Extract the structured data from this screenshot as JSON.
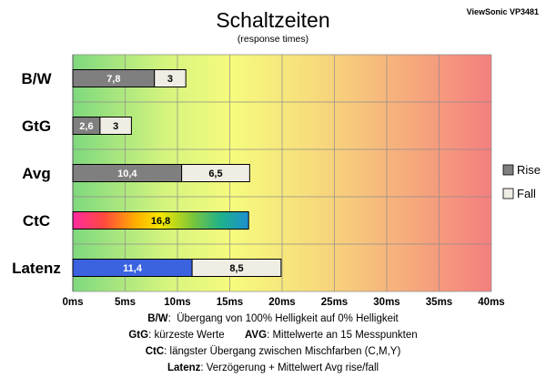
{
  "chart_data": {
    "type": "bar",
    "orientation": "horizontal",
    "stacked": true,
    "title": "Schaltzeiten",
    "subtitle": "(response times)",
    "monitor": "ViewSonic VP3481",
    "categories": [
      "B/W",
      "GtG",
      "Avg",
      "CtC",
      "Latenz"
    ],
    "series": [
      {
        "name": "Rise",
        "values": [
          7.8,
          2.6,
          10.4,
          16.8,
          11.4
        ]
      },
      {
        "name": "Fall",
        "values": [
          3,
          3,
          6.5,
          null,
          8.5
        ]
      }
    ],
    "value_labels": {
      "rise": [
        "7,8",
        "2,6",
        "10,4",
        "16,8",
        "11,4"
      ],
      "fall": [
        "3",
        "3",
        "6,5",
        "",
        "8,5"
      ]
    },
    "special_bars": {
      "CtC": "rainbow",
      "Latenz": "blue"
    },
    "xlim": [
      0,
      40
    ],
    "xticks": [
      "0ms",
      "5ms",
      "10ms",
      "15ms",
      "20ms",
      "25ms",
      "30ms",
      "35ms",
      "40ms"
    ],
    "grid": true,
    "legend_position": "right",
    "colors": {
      "rise": "#7f7f7f",
      "fall": "#f0ede4",
      "latenz": "#3b63e0",
      "background_gradient": [
        "#7ed87e",
        "#f4f87a",
        "#f6d27a",
        "#f58080"
      ]
    }
  },
  "notes": [
    {
      "key": "B/W",
      "text": "Übergang von 100% Helligkeit auf 0% Helligkeit"
    },
    {
      "key": "GtG",
      "text": "kürzeste Werte",
      "key2": "AVG",
      "text2": "Mittelwerte an 15 Messpunkten"
    },
    {
      "key": "CtC",
      "text": "längster Übergang zwischen Mischfarben (C,M,Y)"
    },
    {
      "key": "Latenz",
      "text": "Verzögerung + Mittelwert Avg rise/fall"
    }
  ]
}
